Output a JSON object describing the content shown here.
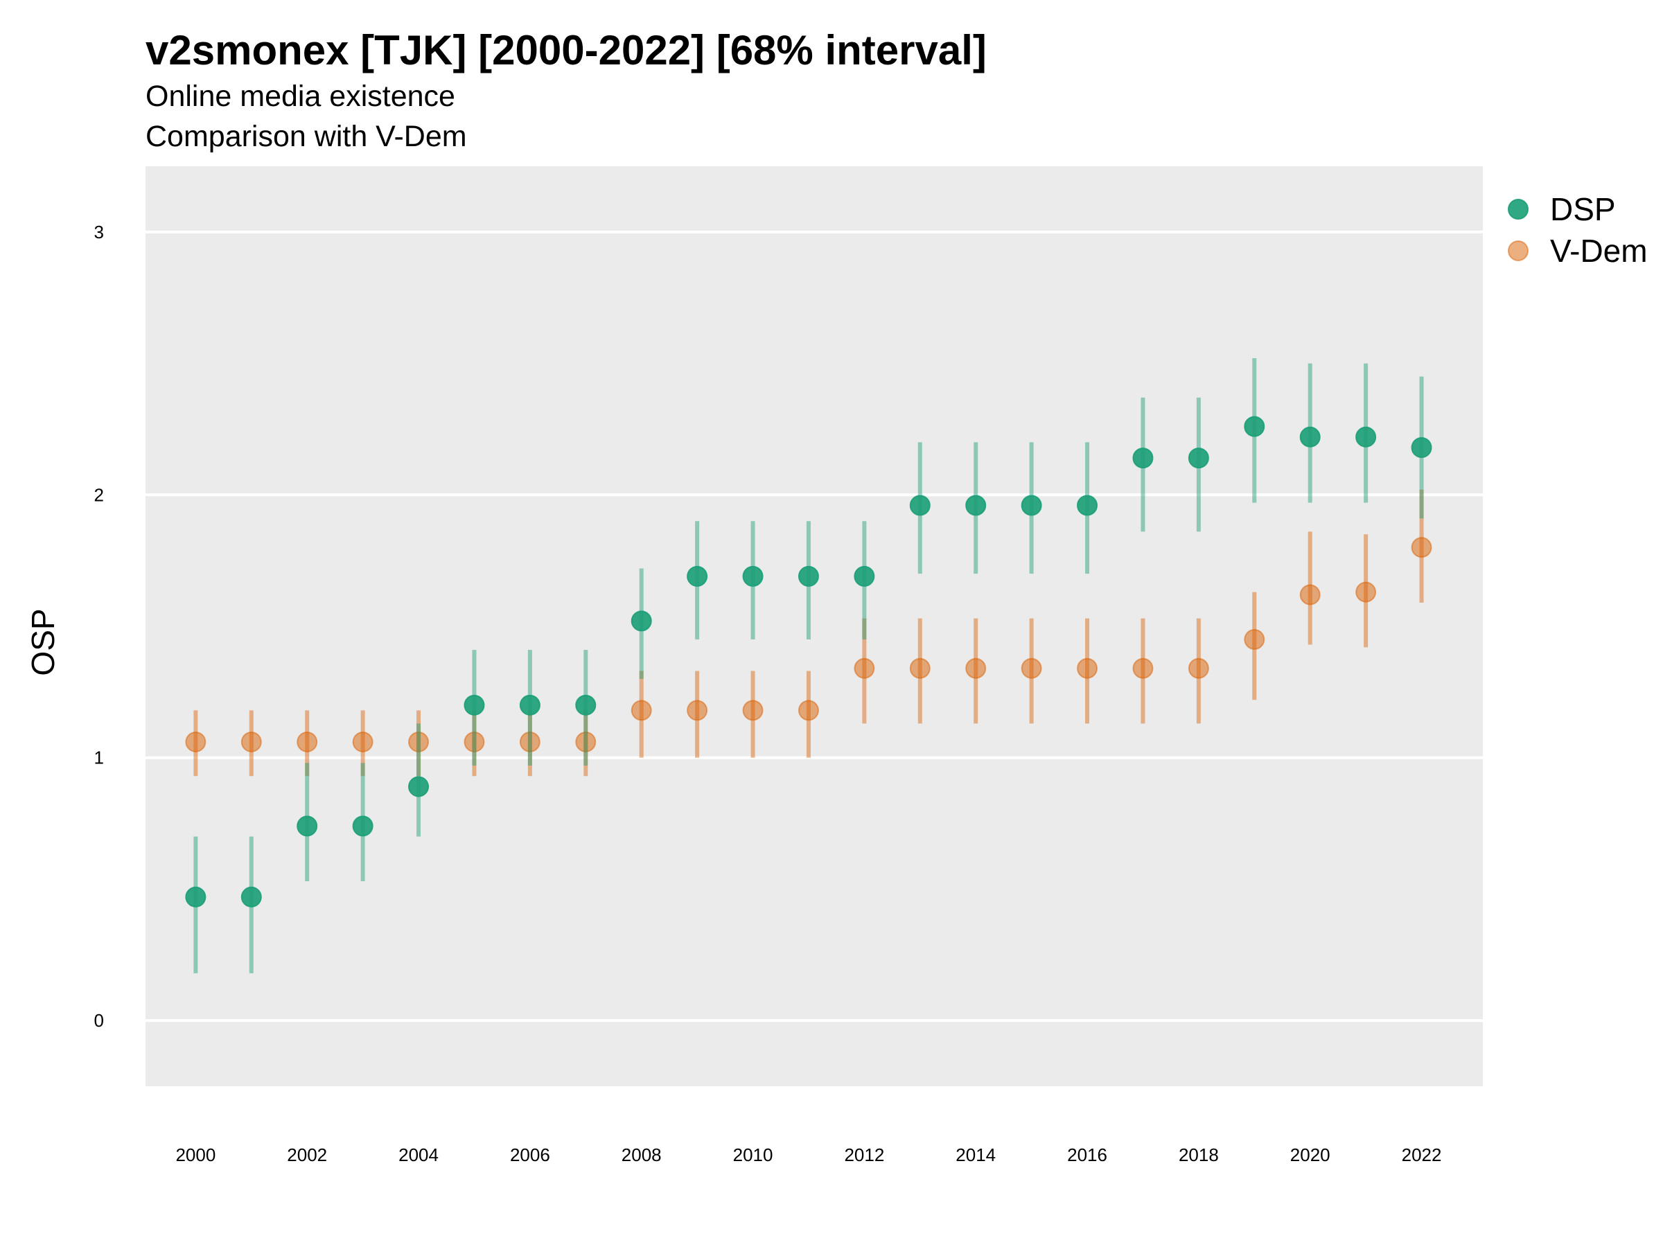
{
  "title": "v2smonex [TJK] [2000-2022] [68% interval]",
  "subtitles": [
    "Online media existence",
    "Comparison with V-Dem"
  ],
  "chart_data": {
    "type": "scatter",
    "title": "v2smonex [TJK] [2000-2022] [68% interval]",
    "subtitle": [
      "Online media existence",
      "Comparison with V-Dem"
    ],
    "xlabel": "",
    "ylabel": "OSP",
    "x": [
      2000,
      2001,
      2002,
      2003,
      2004,
      2005,
      2006,
      2007,
      2008,
      2009,
      2010,
      2011,
      2012,
      2013,
      2014,
      2015,
      2016,
      2017,
      2018,
      2019,
      2020,
      2021,
      2022
    ],
    "xticks": [
      "2000",
      "2002",
      "2004",
      "2006",
      "2008",
      "2010",
      "2012",
      "2014",
      "2016",
      "2018",
      "2020",
      "2022"
    ],
    "yticks": [
      "0",
      "1",
      "2",
      "3"
    ],
    "xlim": [
      1999.1,
      2023.1
    ],
    "ylim": [
      -0.25,
      3.25
    ],
    "grid": true,
    "legend_position": "right",
    "series": [
      {
        "name": "DSP",
        "color": "#1b9e77",
        "values": [
          0.47,
          0.47,
          0.74,
          0.74,
          0.89,
          1.2,
          1.2,
          1.2,
          1.52,
          1.69,
          1.69,
          1.69,
          1.69,
          1.96,
          1.96,
          1.96,
          1.96,
          2.14,
          2.14,
          2.26,
          2.22,
          2.22,
          2.18
        ],
        "lower": [
          0.18,
          0.18,
          0.53,
          0.53,
          0.7,
          0.97,
          0.97,
          0.97,
          1.3,
          1.45,
          1.45,
          1.45,
          1.45,
          1.7,
          1.7,
          1.7,
          1.7,
          1.86,
          1.86,
          1.97,
          1.97,
          1.97,
          1.91
        ],
        "upper": [
          0.7,
          0.7,
          0.98,
          0.98,
          1.13,
          1.41,
          1.41,
          1.41,
          1.72,
          1.9,
          1.9,
          1.9,
          1.9,
          2.2,
          2.2,
          2.2,
          2.2,
          2.37,
          2.37,
          2.52,
          2.5,
          2.5,
          2.45
        ]
      },
      {
        "name": "V-Dem",
        "color": "#d95f02",
        "values": [
          1.06,
          1.06,
          1.06,
          1.06,
          1.06,
          1.06,
          1.06,
          1.06,
          1.18,
          1.18,
          1.18,
          1.18,
          1.34,
          1.34,
          1.34,
          1.34,
          1.34,
          1.34,
          1.34,
          1.45,
          1.62,
          1.63,
          1.8
        ],
        "lower": [
          0.93,
          0.93,
          0.93,
          0.93,
          0.93,
          0.93,
          0.93,
          0.93,
          1.0,
          1.0,
          1.0,
          1.0,
          1.13,
          1.13,
          1.13,
          1.13,
          1.13,
          1.13,
          1.13,
          1.22,
          1.43,
          1.42,
          1.59
        ],
        "upper": [
          1.18,
          1.18,
          1.18,
          1.18,
          1.18,
          1.18,
          1.18,
          1.18,
          1.33,
          1.33,
          1.33,
          1.33,
          1.53,
          1.53,
          1.53,
          1.53,
          1.53,
          1.53,
          1.53,
          1.63,
          1.86,
          1.85,
          2.02
        ]
      }
    ]
  }
}
